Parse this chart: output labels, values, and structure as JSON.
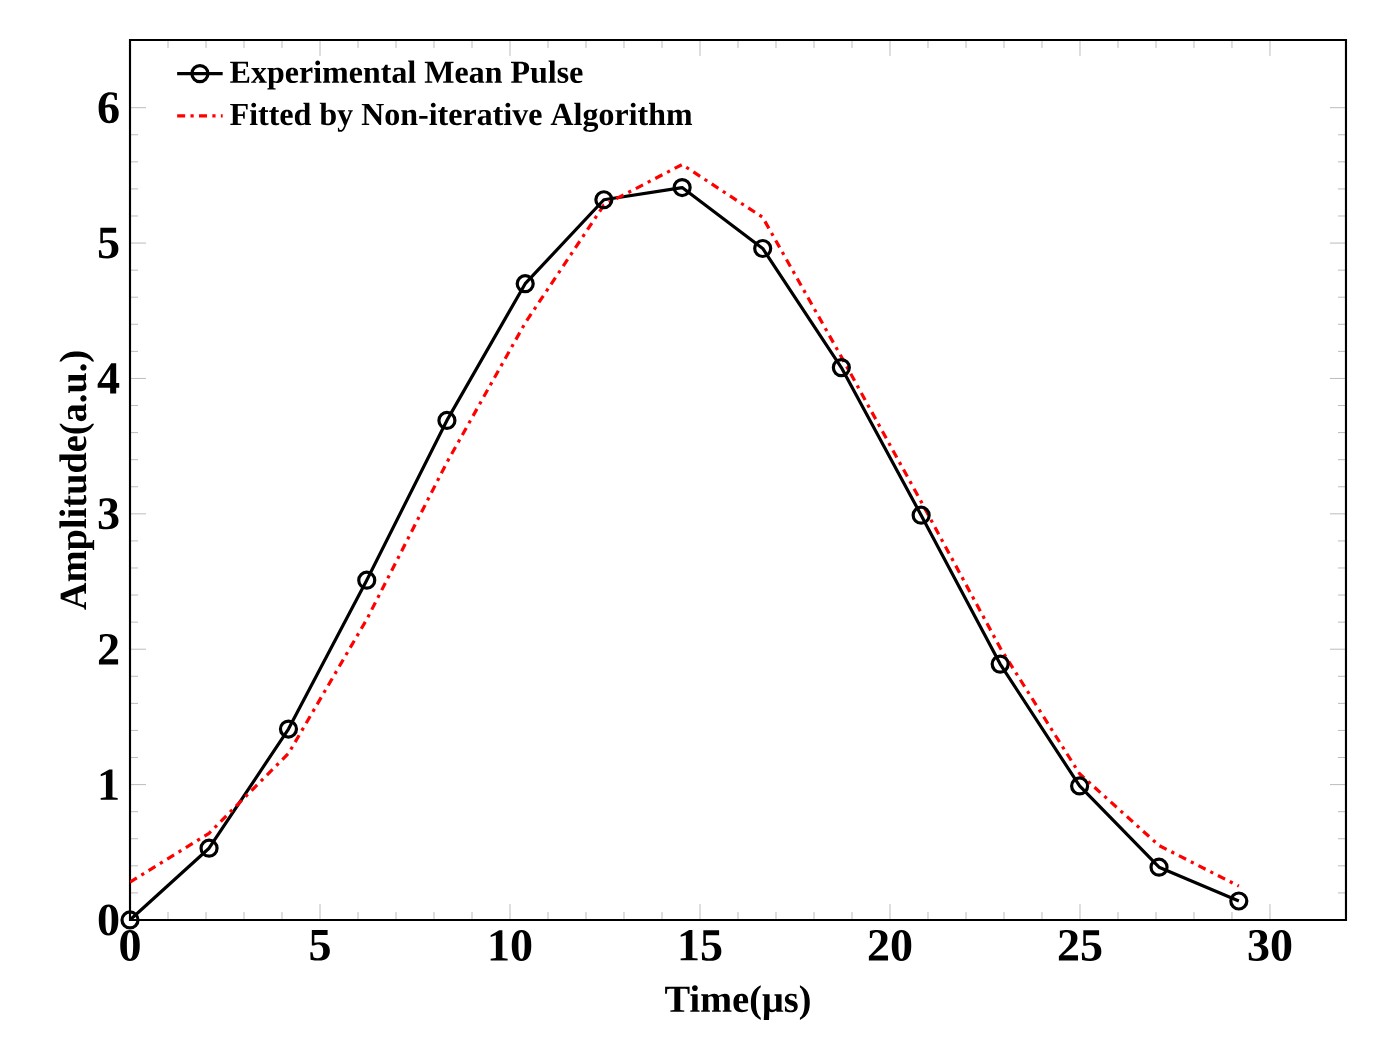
{
  "chart_data": {
    "type": "line",
    "xlabel": "Time(μs)",
    "ylabel": "Amplitude(a.u.)",
    "x": [
      0,
      2.08,
      4.17,
      6.23,
      8.34,
      10.4,
      12.47,
      14.53,
      16.65,
      18.72,
      20.82,
      22.9,
      24.99,
      27.08,
      29.18
    ],
    "series": [
      {
        "name": "Experimental Mean Pulse",
        "color": "#000000",
        "marker": "circle",
        "line_style": "solid",
        "values": [
          0,
          0.53,
          1.41,
          2.51,
          3.69,
          4.7,
          5.32,
          5.41,
          4.96,
          4.08,
          2.99,
          1.89,
          0.99,
          0.39,
          0.14
        ]
      },
      {
        "name": "Fitted by Non-iterative Algorithm",
        "color": "#ff0000",
        "marker": "none",
        "line_style": "dashdotted",
        "values": [
          0.28,
          0.64,
          1.23,
          2.22,
          3.38,
          4.41,
          5.28,
          5.58,
          5.19,
          4.16,
          3.09,
          2.01,
          1.08,
          0.55,
          0.25
        ]
      }
    ],
    "xlim": [
      0,
      32
    ],
    "ylim": [
      0,
      6.5
    ],
    "xticks": [
      0,
      5,
      10,
      15,
      20,
      25,
      30
    ],
    "yticks": [
      0,
      1,
      2,
      3,
      4,
      5,
      6
    ],
    "grid": false,
    "legend": "top left"
  }
}
